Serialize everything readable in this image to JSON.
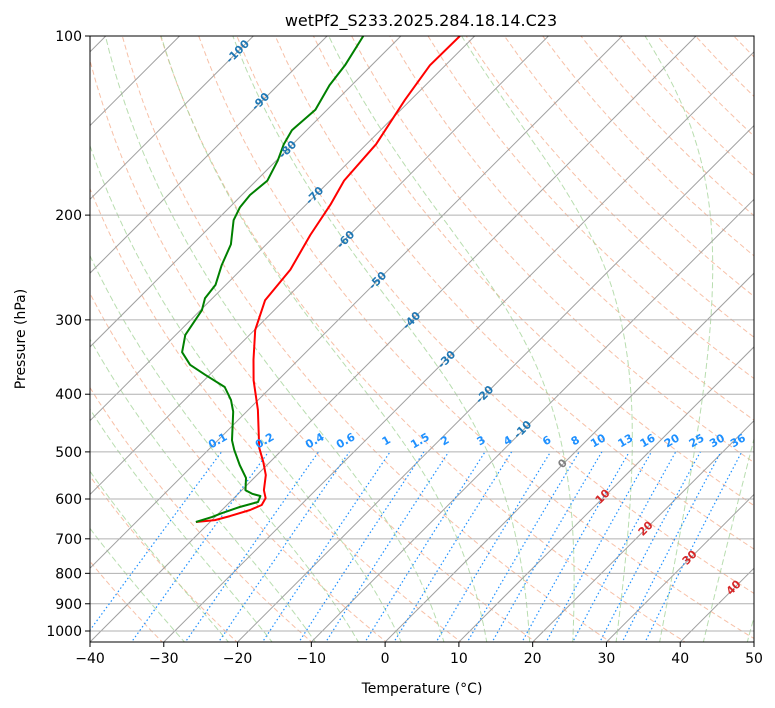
{
  "chart_data": {
    "type": "line",
    "subtype": "skew-t log-p",
    "title": "wetPf2_S233.2025.284.18.14.C23",
    "xlabel": "Temperature (°C)",
    "ylabel": "Pressure (hPa)",
    "xlim": [
      -40,
      50
    ],
    "ylim": [
      1050,
      100
    ],
    "xticks": [
      "−40",
      "−30",
      "−20",
      "−10",
      "0",
      "10",
      "20",
      "30",
      "40",
      "50"
    ],
    "xtick_values": [
      -40,
      -30,
      -20,
      -10,
      0,
      10,
      20,
      30,
      40,
      50
    ],
    "yticks": [
      "100",
      "200",
      "300",
      "400",
      "500",
      "600",
      "700",
      "800",
      "900",
      "1000"
    ],
    "ytick_values": [
      100,
      200,
      300,
      400,
      500,
      600,
      700,
      800,
      900,
      1000
    ],
    "grid": true,
    "series": [
      {
        "name": "temperature",
        "color": "#ff0000",
        "points": [
          [
            -72.0,
            100
          ],
          [
            -72.1,
            112
          ],
          [
            -70.8,
            128
          ],
          [
            -68.7,
            152
          ],
          [
            -68.1,
            175
          ],
          [
            -66.7,
            192
          ],
          [
            -65.3,
            216
          ],
          [
            -63.3,
            247
          ],
          [
            -62.6,
            278
          ],
          [
            -59.9,
            312
          ],
          [
            -56.1,
            350
          ],
          [
            -53.3,
            379
          ],
          [
            -48.7,
            425
          ],
          [
            -43.4,
            492
          ],
          [
            -40.9,
            520
          ],
          [
            -38.8,
            547
          ],
          [
            -37.0,
            580
          ],
          [
            -35.7,
            598
          ],
          [
            -35.3,
            614
          ],
          [
            -36.2,
            626
          ],
          [
            -38.1,
            641
          ],
          [
            -39.6,
            651
          ],
          [
            -41.9,
            656
          ]
        ]
      },
      {
        "name": "dewpoint",
        "color": "#008000",
        "points": [
          [
            -85.1,
            100
          ],
          [
            -83.6,
            112
          ],
          [
            -83.0,
            121
          ],
          [
            -81.6,
            133
          ],
          [
            -82.0,
            144
          ],
          [
            -81.2,
            152
          ],
          [
            -79.8,
            162
          ],
          [
            -78.5,
            175
          ],
          [
            -78.9,
            185
          ],
          [
            -78.6,
            194
          ],
          [
            -77.7,
            204
          ],
          [
            -74.8,
            224
          ],
          [
            -73.2,
            243
          ],
          [
            -71.4,
            262
          ],
          [
            -71.0,
            276
          ],
          [
            -69.8,
            289
          ],
          [
            -68.7,
            318
          ],
          [
            -66.8,
            340
          ],
          [
            -64.0,
            357
          ],
          [
            -60.6,
            371
          ],
          [
            -56.3,
            389
          ],
          [
            -53.7,
            409
          ],
          [
            -51.8,
            428
          ],
          [
            -48.1,
            478
          ],
          [
            -46.5,
            496
          ],
          [
            -43.7,
            526
          ],
          [
            -41.1,
            553
          ],
          [
            -39.5,
            580
          ],
          [
            -38.1,
            588
          ],
          [
            -36.7,
            593
          ],
          [
            -36.2,
            607
          ],
          [
            -38.0,
            619
          ],
          [
            -39.6,
            634
          ],
          [
            -40.4,
            643
          ],
          [
            -41.9,
            656
          ]
        ]
      }
    ],
    "isotherm_labels": [
      "-100",
      "-90",
      "-80",
      "-70",
      "-60",
      "-50",
      "-40",
      "-30",
      "-20",
      "-10",
      "0",
      "10",
      "20",
      "30",
      "40"
    ],
    "mixing_ratio_labels": [
      "0.1",
      "0.2",
      "0.4",
      "0.6",
      "1",
      "1.5",
      "2",
      "3",
      "4",
      "6",
      "8",
      "10",
      "13",
      "16",
      "20",
      "25",
      "30",
      "36"
    ],
    "mixing_ratio_values": [
      0.1,
      0.2,
      0.4,
      0.6,
      1,
      1.5,
      2,
      3,
      4,
      6,
      8,
      10,
      13,
      16,
      20,
      25,
      30,
      36
    ],
    "colors": {
      "isotherm": "#a0a0a0",
      "dry_adiabat": "#f4a582",
      "moist_adiabat": "#a6d49b",
      "mixing_ratio": "#1e90ff",
      "isotherm_label_cold": "#1f77b4",
      "isotherm_label_zero": "#808080",
      "isotherm_label_warm": "#d62728"
    }
  }
}
